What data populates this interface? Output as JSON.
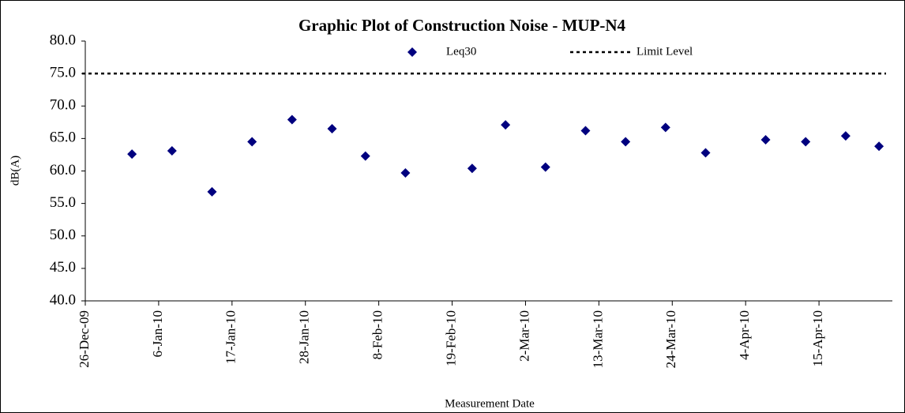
{
  "chart_data": {
    "type": "scatter",
    "title": "Graphic Plot of Construction Noise - MUP-N4",
    "x_label": "Measurement Date",
    "y_label": "dB(A)",
    "series": [
      {
        "name": "Leq30",
        "color": "#00007f",
        "marker": "diamond",
        "x": [
          "2010-01-02",
          "2010-01-08",
          "2010-01-14",
          "2010-01-20",
          "2010-01-26",
          "2010-02-01",
          "2010-02-06",
          "2010-02-12",
          "2010-02-22",
          "2010-02-27",
          "2010-03-05",
          "2010-03-11",
          "2010-03-17",
          "2010-03-23",
          "2010-03-29",
          "2010-04-07",
          "2010-04-13",
          "2010-04-19",
          "2010-04-24"
        ],
        "values": [
          62.6,
          63.1,
          56.8,
          64.5,
          67.9,
          66.5,
          62.3,
          59.7,
          60.4,
          67.1,
          60.6,
          66.2,
          64.5,
          66.7,
          62.8,
          64.8,
          64.5,
          65.4,
          63.8
        ]
      }
    ],
    "reference_lines": [
      {
        "name": "Limit Level",
        "value": 75,
        "color": "#000000",
        "style": "dotted"
      }
    ],
    "xlim": [
      "2009-12-26",
      "2010-04-26"
    ],
    "xticks": [
      {
        "value": "2009-12-26",
        "label": "26-Dec-09"
      },
      {
        "value": "2010-01-06",
        "label": "6-Jan-10"
      },
      {
        "value": "2010-01-17",
        "label": "17-Jan-10"
      },
      {
        "value": "2010-01-28",
        "label": "28-Jan-10"
      },
      {
        "value": "2010-02-08",
        "label": "8-Feb-10"
      },
      {
        "value": "2010-02-19",
        "label": "19-Feb-10"
      },
      {
        "value": "2010-03-02",
        "label": "2-Mar-10"
      },
      {
        "value": "2010-03-13",
        "label": "13-Mar-10"
      },
      {
        "value": "2010-03-24",
        "label": "24-Mar-10"
      },
      {
        "value": "2010-04-04",
        "label": "4-Apr-10"
      },
      {
        "value": "2010-04-15",
        "label": "15-Apr-10"
      }
    ],
    "ylim": [
      40,
      80
    ],
    "yticks": [
      {
        "value": 40,
        "label": "40.0"
      },
      {
        "value": 45,
        "label": "45.0"
      },
      {
        "value": 50,
        "label": "50.0"
      },
      {
        "value": 55,
        "label": "55.0"
      },
      {
        "value": 60,
        "label": "60.0"
      },
      {
        "value": 65,
        "label": "65.0"
      },
      {
        "value": 70,
        "label": "70.0"
      },
      {
        "value": 75,
        "label": "75.0"
      },
      {
        "value": 80,
        "label": "80.0"
      }
    ],
    "grid": false
  }
}
